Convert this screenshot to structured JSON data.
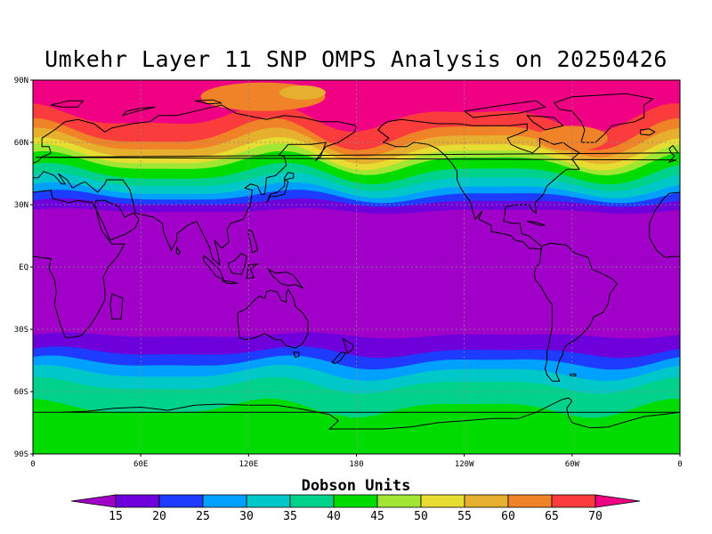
{
  "title": "Umkehr Layer 11 SNP OMPS Analysis on 20250426",
  "lat_ticks": [
    "90N",
    "60N",
    "30N",
    "EQ",
    "30S",
    "60S",
    "90S"
  ],
  "lon_ticks": [
    "0",
    "60E",
    "120E",
    "180",
    "120W",
    "60W",
    "0"
  ],
  "colorbar": {
    "title": "Dobson Units",
    "labels": [
      "15",
      "20",
      "25",
      "30",
      "35",
      "40",
      "45",
      "50",
      "55",
      "60",
      "65",
      "70"
    ],
    "colors": [
      "#a000c8",
      "#6e00dc",
      "#1e3cff",
      "#00a0ff",
      "#00c8c8",
      "#00d28c",
      "#00dc00",
      "#a0e632",
      "#e6dc32",
      "#e6af2d",
      "#f08228",
      "#fa3c3c",
      "#f00082"
    ]
  },
  "map": {
    "projection": "cylindrical equidistant",
    "center_longitude": "180",
    "coastlines": true,
    "gridlines": "dotted"
  }
}
